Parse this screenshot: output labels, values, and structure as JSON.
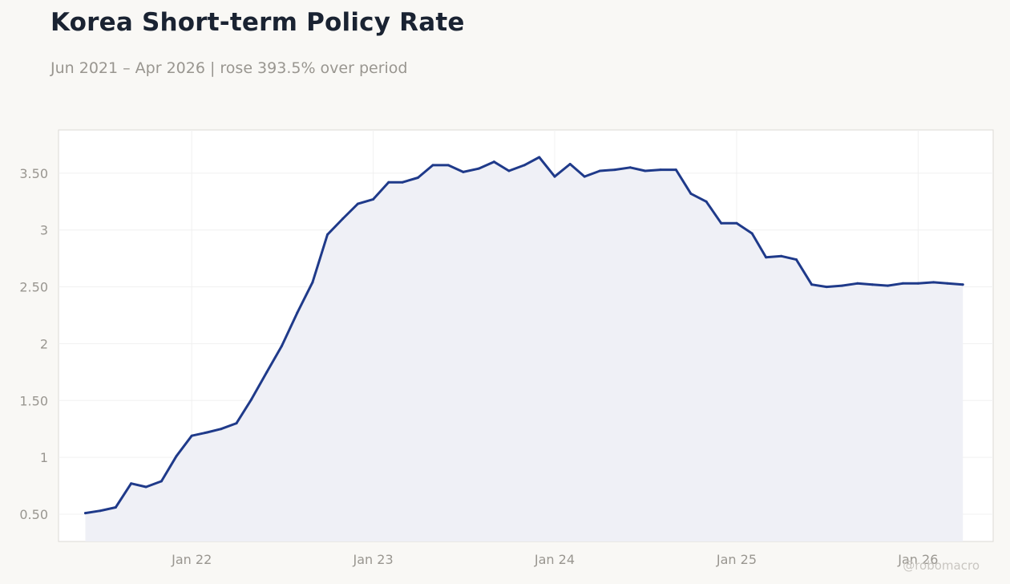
{
  "title": "Korea Short-term Policy Rate",
  "subtitle": "Jun 2021 – Apr 2026 | rose 393.5% over period",
  "watermark": "@robomacro",
  "colors": {
    "line": "#1f3a8a",
    "area": "#eeeff5",
    "background": "#f9f8f5",
    "plot_background": "#ffffff",
    "grid": "#f0f0f0",
    "tick_text": "#999690"
  },
  "chart_data": {
    "type": "area",
    "title": "Korea Short-term Policy Rate",
    "xlabel": "",
    "ylabel": "",
    "grid": true,
    "xlim": [
      "2021-04-08",
      "2026-06-01"
    ],
    "ylim": [
      0.26,
      3.88
    ],
    "x_ticks": [
      {
        "date": "2022-01-01",
        "label": "Jan 22"
      },
      {
        "date": "2023-01-01",
        "label": "Jan 23"
      },
      {
        "date": "2024-01-01",
        "label": "Jan 24"
      },
      {
        "date": "2025-01-01",
        "label": "Jan 25"
      },
      {
        "date": "2026-01-01",
        "label": "Jan 26"
      }
    ],
    "y_ticks": [
      {
        "value": 0.5,
        "label": "0.50"
      },
      {
        "value": 1.0,
        "label": "1"
      },
      {
        "value": 1.5,
        "label": "1.50"
      },
      {
        "value": 2.0,
        "label": "2"
      },
      {
        "value": 2.5,
        "label": "2.50"
      },
      {
        "value": 3.0,
        "label": "3"
      },
      {
        "value": 3.5,
        "label": "3.50"
      }
    ],
    "series": [
      {
        "x": [
          "2021-06-01",
          "2021-07-01",
          "2021-08-01",
          "2021-09-01",
          "2021-10-01",
          "2021-11-01",
          "2021-12-01",
          "2022-01-01",
          "2022-02-01",
          "2022-03-01",
          "2022-04-01",
          "2022-05-01",
          "2022-06-01",
          "2022-07-01",
          "2022-08-01",
          "2022-09-01",
          "2022-10-01",
          "2022-11-01",
          "2022-12-01",
          "2023-01-01",
          "2023-02-01",
          "2023-03-01",
          "2023-04-01",
          "2023-05-01",
          "2023-06-01",
          "2023-07-01",
          "2023-08-01",
          "2023-09-01",
          "2023-10-01",
          "2023-11-01",
          "2023-12-01",
          "2024-01-01",
          "2024-02-01",
          "2024-03-01",
          "2024-04-01",
          "2024-05-01",
          "2024-06-01",
          "2024-07-01",
          "2024-08-01",
          "2024-09-01",
          "2024-10-01",
          "2024-11-01",
          "2024-12-01",
          "2025-01-01",
          "2025-02-01",
          "2025-03-01",
          "2025-04-01",
          "2025-05-01",
          "2025-06-01",
          "2025-07-01",
          "2025-08-01",
          "2025-09-01",
          "2025-10-01",
          "2025-11-01",
          "2025-12-01",
          "2026-01-01",
          "2026-02-01",
          "2026-03-01",
          "2026-04-01"
        ],
        "values": [
          0.51,
          0.53,
          0.56,
          0.77,
          0.74,
          0.79,
          1.01,
          1.19,
          1.22,
          1.25,
          1.3,
          1.51,
          1.75,
          1.98,
          2.27,
          2.54,
          2.96,
          3.1,
          3.23,
          3.27,
          3.42,
          3.42,
          3.46,
          3.57,
          3.57,
          3.51,
          3.54,
          3.6,
          3.52,
          3.57,
          3.64,
          3.47,
          3.58,
          3.47,
          3.52,
          3.53,
          3.55,
          3.52,
          3.53,
          3.53,
          3.32,
          3.25,
          3.06,
          3.06,
          2.97,
          2.76,
          2.77,
          2.74,
          2.52,
          2.5,
          2.51,
          2.53,
          2.52,
          2.51,
          2.53,
          2.53,
          2.54,
          2.53,
          2.52
        ]
      }
    ]
  }
}
